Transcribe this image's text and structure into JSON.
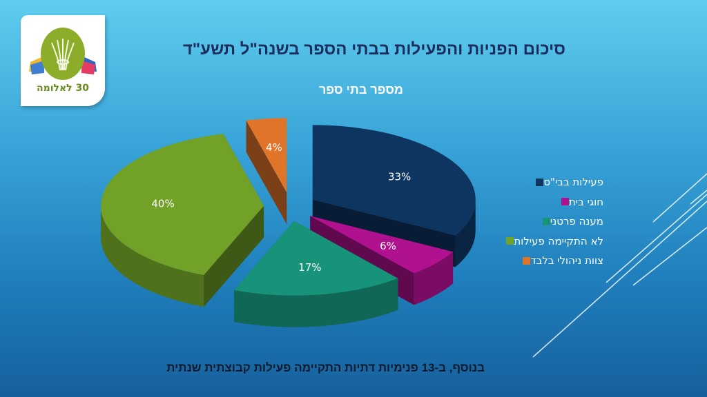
{
  "slide": {
    "title": "סיכום הפניות והפעילות בבתי הספר בשנה\"ל תשע\"ד",
    "footer": "בנוסף, ב-13 פנימיות דתיות התקיימה פעילות קבוצתית שנתית"
  },
  "logo": {
    "caption": "30 לאלומה",
    "icon": "wheat-sheaf-logo"
  },
  "chart_data": {
    "type": "pie",
    "title": "מספר בתי ספר",
    "style": "3d-exploded",
    "legend_position": "right",
    "slices": [
      {
        "label": "פעילות בבי\"ס",
        "value": 33,
        "display": "33%",
        "color": "#0e3560"
      },
      {
        "label": "חוגי בית",
        "value": 6,
        "display": "6%",
        "color": "#b0118f"
      },
      {
        "label": "מענה פרטני",
        "value": 17,
        "display": "17%",
        "color": "#17937a"
      },
      {
        "label": "לא התקיימה פעילות",
        "value": 40,
        "display": "40%",
        "color": "#71a127"
      },
      {
        "label": "צוות ניהולי בלבד",
        "value": 4,
        "display": "4%",
        "color": "#e07429"
      }
    ]
  }
}
